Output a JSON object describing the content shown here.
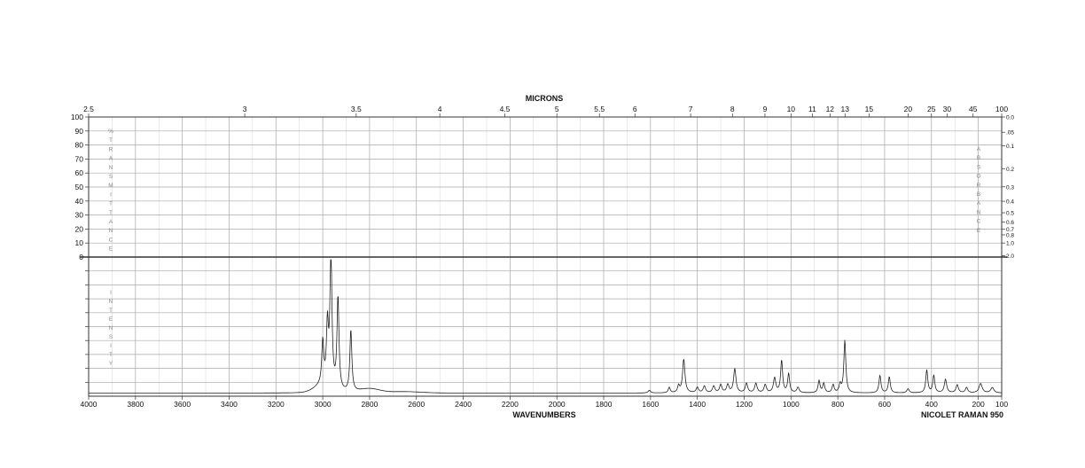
{
  "chart_data": {
    "type": "line",
    "top_axis_title": "MICRONS",
    "micron_ticks": [
      {
        "label": "2.5",
        "value": 2.5
      },
      {
        "label": "3",
        "value": 3
      },
      {
        "label": "3.5",
        "value": 3.5
      },
      {
        "label": "4",
        "value": 4
      },
      {
        "label": "4.5",
        "value": 4.5
      },
      {
        "label": "5",
        "value": 5
      },
      {
        "label": "5.5",
        "value": 5.5
      },
      {
        "label": "6",
        "value": 6
      },
      {
        "label": "7",
        "value": 7
      },
      {
        "label": "8",
        "value": 8
      },
      {
        "label": "9",
        "value": 9
      },
      {
        "label": "10",
        "value": 10
      },
      {
        "label": "11",
        "value": 11
      },
      {
        "label": "12",
        "value": 12
      },
      {
        "label": "13",
        "value": 13
      },
      {
        "label": "15",
        "value": 15
      },
      {
        "label": "20",
        "value": 20
      },
      {
        "label": "25",
        "value": 25
      },
      {
        "label": "30",
        "value": 30
      },
      {
        "label": "45",
        "value": 45
      },
      {
        "label": "100",
        "value": 100
      }
    ],
    "xlabel": "WAVENUMBERS",
    "xlim": [
      4000,
      100
    ],
    "x_ticks": [
      4000,
      3800,
      3600,
      3400,
      3200,
      3000,
      2800,
      2600,
      2400,
      2200,
      2000,
      1800,
      1600,
      1400,
      1200,
      1000,
      800,
      600,
      400,
      200,
      100
    ],
    "transmittance_ticks": [
      100,
      90,
      80,
      70,
      60,
      50,
      40,
      30,
      20,
      10,
      0
    ],
    "transmittance_label_letters": [
      "%",
      "T",
      "R",
      "A",
      "N",
      "S",
      "M",
      "I",
      "T",
      "T",
      "A",
      "N",
      "C",
      "E"
    ],
    "absorbance_ticks": [
      {
        "label": "0.0",
        "value": 0.0
      },
      {
        "label": ".05",
        "value": 0.05
      },
      {
        "label": "0.1",
        "value": 0.1
      },
      {
        "label": "0.2",
        "value": 0.2
      },
      {
        "label": "0.3",
        "value": 0.3
      },
      {
        "label": "0.4",
        "value": 0.4
      },
      {
        "label": "0.5",
        "value": 0.5
      },
      {
        "label": "0.6",
        "value": 0.6
      },
      {
        "label": "0.7",
        "value": 0.7
      },
      {
        "label": "0.8",
        "value": 0.8
      },
      {
        "label": "1.0",
        "value": 1.0
      },
      {
        "label": "2.0",
        "value": 2.0
      }
    ],
    "absorbance_label_letters": [
      "A",
      "B",
      "S",
      "O",
      "R",
      "B",
      "A",
      "N",
      "C",
      "E"
    ],
    "intensity_label_letters": [
      "I",
      "N",
      "T",
      "E",
      "N",
      "S",
      "I",
      "T",
      "Y"
    ],
    "instrument": "NICOLET RAMAN 950",
    "series": [
      {
        "baseline": 0.01,
        "baseline_features": [
          [
            3000,
            0.05,
            50
          ],
          [
            2800,
            0.03,
            60
          ],
          [
            2650,
            0.01,
            100
          ]
        ],
        "peaks": [
          {
            "x": 2965,
            "y": 1.0,
            "w": 5
          },
          {
            "x": 2935,
            "y": 0.69,
            "w": 5
          },
          {
            "x": 2980,
            "y": 0.44,
            "w": 5
          },
          {
            "x": 3000,
            "y": 0.32,
            "w": 5
          },
          {
            "x": 2880,
            "y": 0.46,
            "w": 5
          },
          {
            "x": 1605,
            "y": 0.02,
            "w": 6
          },
          {
            "x": 1520,
            "y": 0.04,
            "w": 5
          },
          {
            "x": 1480,
            "y": 0.05,
            "w": 5
          },
          {
            "x": 1458,
            "y": 0.25,
            "w": 6
          },
          {
            "x": 1400,
            "y": 0.04,
            "w": 6
          },
          {
            "x": 1370,
            "y": 0.05,
            "w": 6
          },
          {
            "x": 1330,
            "y": 0.05,
            "w": 6
          },
          {
            "x": 1300,
            "y": 0.06,
            "w": 6
          },
          {
            "x": 1270,
            "y": 0.06,
            "w": 6
          },
          {
            "x": 1240,
            "y": 0.18,
            "w": 6
          },
          {
            "x": 1190,
            "y": 0.07,
            "w": 6
          },
          {
            "x": 1150,
            "y": 0.07,
            "w": 6
          },
          {
            "x": 1110,
            "y": 0.06,
            "w": 6
          },
          {
            "x": 1070,
            "y": 0.11,
            "w": 6
          },
          {
            "x": 1040,
            "y": 0.24,
            "w": 5
          },
          {
            "x": 1010,
            "y": 0.14,
            "w": 5
          },
          {
            "x": 970,
            "y": 0.04,
            "w": 6
          },
          {
            "x": 880,
            "y": 0.09,
            "w": 5
          },
          {
            "x": 860,
            "y": 0.07,
            "w": 5
          },
          {
            "x": 820,
            "y": 0.06,
            "w": 5
          },
          {
            "x": 790,
            "y": 0.06,
            "w": 5
          },
          {
            "x": 770,
            "y": 0.39,
            "w": 5
          },
          {
            "x": 620,
            "y": 0.13,
            "w": 5
          },
          {
            "x": 580,
            "y": 0.12,
            "w": 5
          },
          {
            "x": 500,
            "y": 0.03,
            "w": 6
          },
          {
            "x": 420,
            "y": 0.17,
            "w": 5
          },
          {
            "x": 390,
            "y": 0.13,
            "w": 5
          },
          {
            "x": 340,
            "y": 0.1,
            "w": 6
          },
          {
            "x": 290,
            "y": 0.06,
            "w": 6
          },
          {
            "x": 250,
            "y": 0.04,
            "w": 6
          },
          {
            "x": 190,
            "y": 0.07,
            "w": 8
          },
          {
            "x": 140,
            "y": 0.04,
            "w": 8
          }
        ]
      }
    ]
  }
}
